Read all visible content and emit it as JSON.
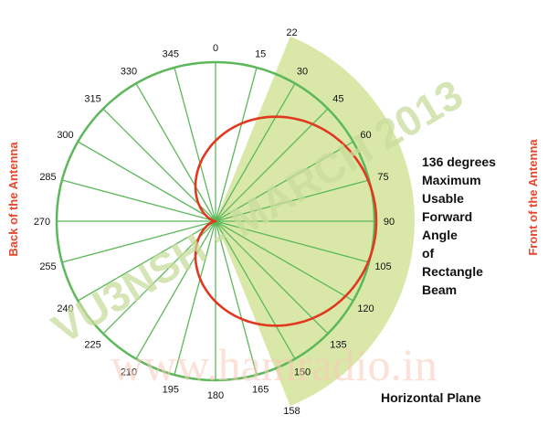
{
  "diagram": {
    "degree_labels": [
      "0",
      "15",
      "22",
      "30",
      "45",
      "60",
      "75",
      "90",
      "105",
      "120",
      "135",
      "150",
      "158",
      "165",
      "180",
      "195",
      "210",
      "225",
      "240",
      "255",
      "270",
      "285",
      "300",
      "315",
      "330",
      "345"
    ],
    "back_label": "Back of the Antenna",
    "front_label": "Front of the Antenna",
    "description_lines": [
      "136 degrees",
      "Maximum",
      "Usable",
      "Forward",
      "Angle",
      "of",
      "Rectangle",
      "Beam"
    ],
    "plane_label": "Horizontal Plane",
    "watermark_callsign": "VU3NSH - MARCH 2013",
    "watermark_url": "www.hamradio.in",
    "beam_start_deg": 22,
    "beam_end_deg": 158,
    "colors": {
      "grid": "#5cb85a",
      "pattern": "#e0391f",
      "beam": "#d9e8a8",
      "side_label": "#e8452b",
      "text": "#111111"
    }
  }
}
